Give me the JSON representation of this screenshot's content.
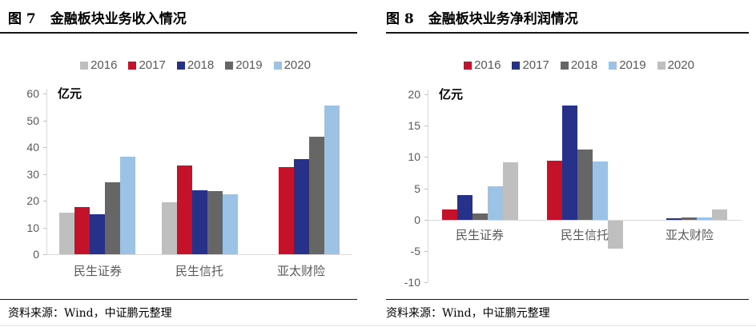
{
  "panels": [
    {
      "fig_label": "图 7",
      "title": "金融板块业务收入情况",
      "unit_label": "亿元",
      "source": "资料来源：Wind，中证鹏元整理",
      "chart_data": {
        "type": "bar",
        "title": "金融板块业务收入情况",
        "ylabel": "亿元",
        "categories": [
          "民生证券",
          "民生信托",
          "亚太财险"
        ],
        "series": [
          {
            "name": "2016",
            "color": "#BFBFBF",
            "values": [
              15.5,
              19.5,
              null
            ]
          },
          {
            "name": "2017",
            "color": "#C5122B",
            "values": [
              17.5,
              33.0,
              32.5
            ]
          },
          {
            "name": "2018",
            "color": "#283189",
            "values": [
              15.0,
              24.0,
              35.5
            ]
          },
          {
            "name": "2019",
            "color": "#666666",
            "values": [
              27.0,
              23.5,
              44.0
            ]
          },
          {
            "name": "2020",
            "color": "#9CC2E5",
            "values": [
              36.5,
              22.5,
              55.5
            ]
          }
        ],
        "ylim": [
          0,
          60
        ],
        "yticks": [
          0,
          10,
          20,
          30,
          40,
          50,
          60
        ],
        "legend_position": "top",
        "grid": false
      }
    },
    {
      "fig_label": "图 8",
      "title": "金融板块业务净利润情况",
      "unit_label": "亿元",
      "source": "资料来源：Wind，中证鹏元整理",
      "chart_data": {
        "type": "bar",
        "title": "金融板块业务净利润情况",
        "ylabel": "亿元",
        "categories": [
          "民生证券",
          "民生信托",
          "亚太财险"
        ],
        "series": [
          {
            "name": "2016",
            "color": "#C5122B",
            "values": [
              1.7,
              9.5,
              null
            ]
          },
          {
            "name": "2017",
            "color": "#283189",
            "values": [
              4.0,
              18.2,
              0.2
            ]
          },
          {
            "name": "2018",
            "color": "#666666",
            "values": [
              1.0,
              11.2,
              0.4
            ]
          },
          {
            "name": "2019",
            "color": "#9CC2E5",
            "values": [
              5.3,
              9.3,
              0.4
            ]
          },
          {
            "name": "2020",
            "color": "#BFBFBF",
            "values": [
              9.2,
              -4.5,
              1.6
            ]
          }
        ],
        "ylim": [
          -10,
          20
        ],
        "yticks": [
          -10,
          -5,
          0,
          5,
          10,
          15,
          20
        ],
        "legend_position": "top",
        "grid": false
      }
    }
  ]
}
